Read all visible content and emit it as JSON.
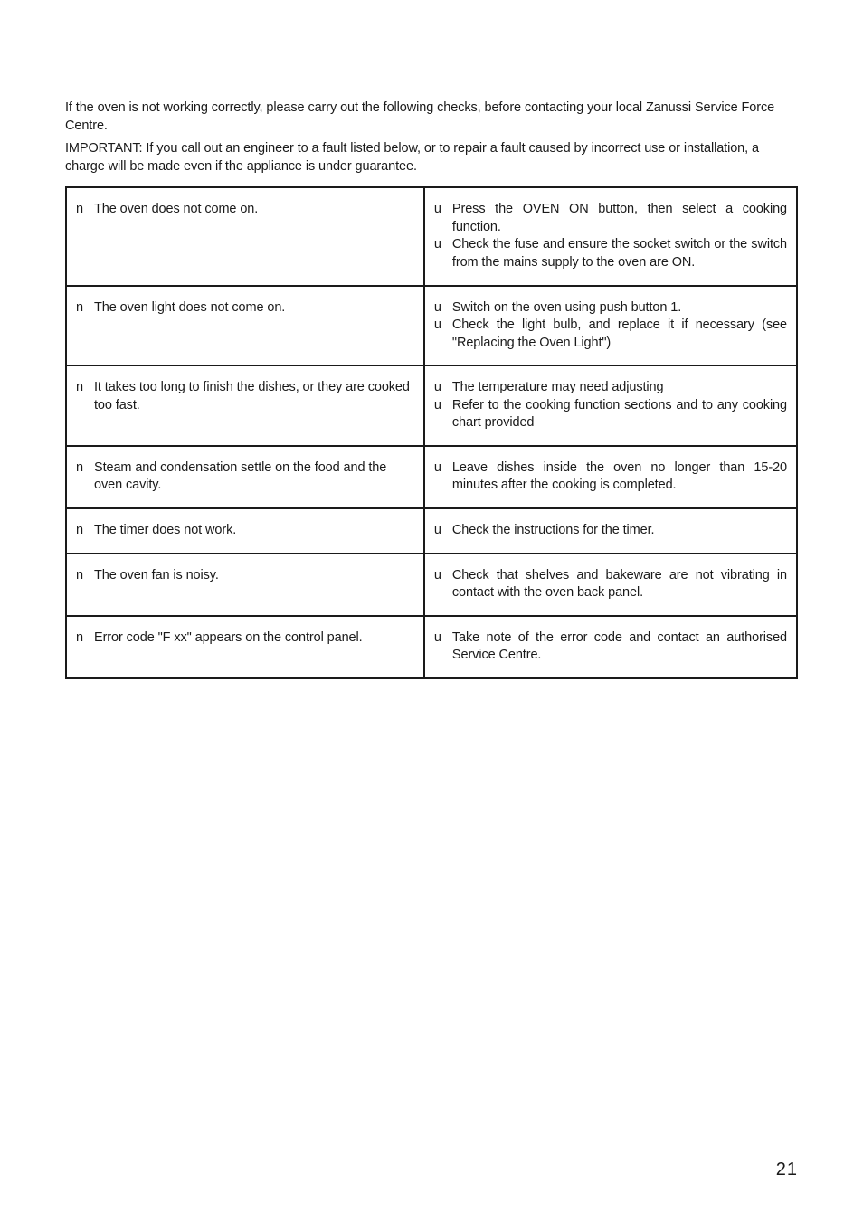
{
  "intro_paragraph": "If the oven is not working correctly, please carry out the following checks, before contacting your local Zanussi Service Force Centre.",
  "important_label": "IMPORTANT:",
  "important_text": " If you call out an engineer to a fault listed below, or to repair a fault caused by incorrect use or installation, a charge will be made even if the appliance is under guarantee.",
  "bullet_symptom": "n",
  "bullet_solution": "u",
  "rows": [
    {
      "symptom": "The oven does not come on.",
      "solutions": [
        "Press the OVEN ON button, then select a cooking function.",
        "Check the fuse and ensure the socket switch or the switch from the mains supply to the oven are ON."
      ]
    },
    {
      "symptom": "The oven light does not come on.",
      "solutions": [
        "Switch on the oven using push button 1.",
        "Check the light bulb, and replace it if necessary (see \"Replacing the Oven Light\")"
      ]
    },
    {
      "symptom": "It takes too long to finish the dishes, or they are cooked too fast.",
      "solutions": [
        "The temperature may need adjusting",
        "Refer to the cooking function sections and to any cooking chart provided"
      ]
    },
    {
      "symptom": "Steam and condensation settle on the food and the oven cavity.",
      "solutions": [
        "Leave dishes inside the oven no longer than 15-20 minutes after the cooking is completed."
      ]
    },
    {
      "symptom": "The timer does not work.",
      "solutions": [
        "Check the instructions for the timer."
      ]
    },
    {
      "symptom": "The oven fan is noisy.",
      "solutions": [
        "Check that shelves and bakeware are not vibrating in contact with the oven back panel."
      ]
    },
    {
      "symptom": "Error code \"F xx\" appears on the control panel.",
      "solutions": [
        "Take note of the error code and contact an authorised Service Centre."
      ]
    }
  ],
  "page_number": "21",
  "colors": {
    "text": "#1a1a1a",
    "border": "#1a1a1a",
    "background": "#ffffff"
  }
}
